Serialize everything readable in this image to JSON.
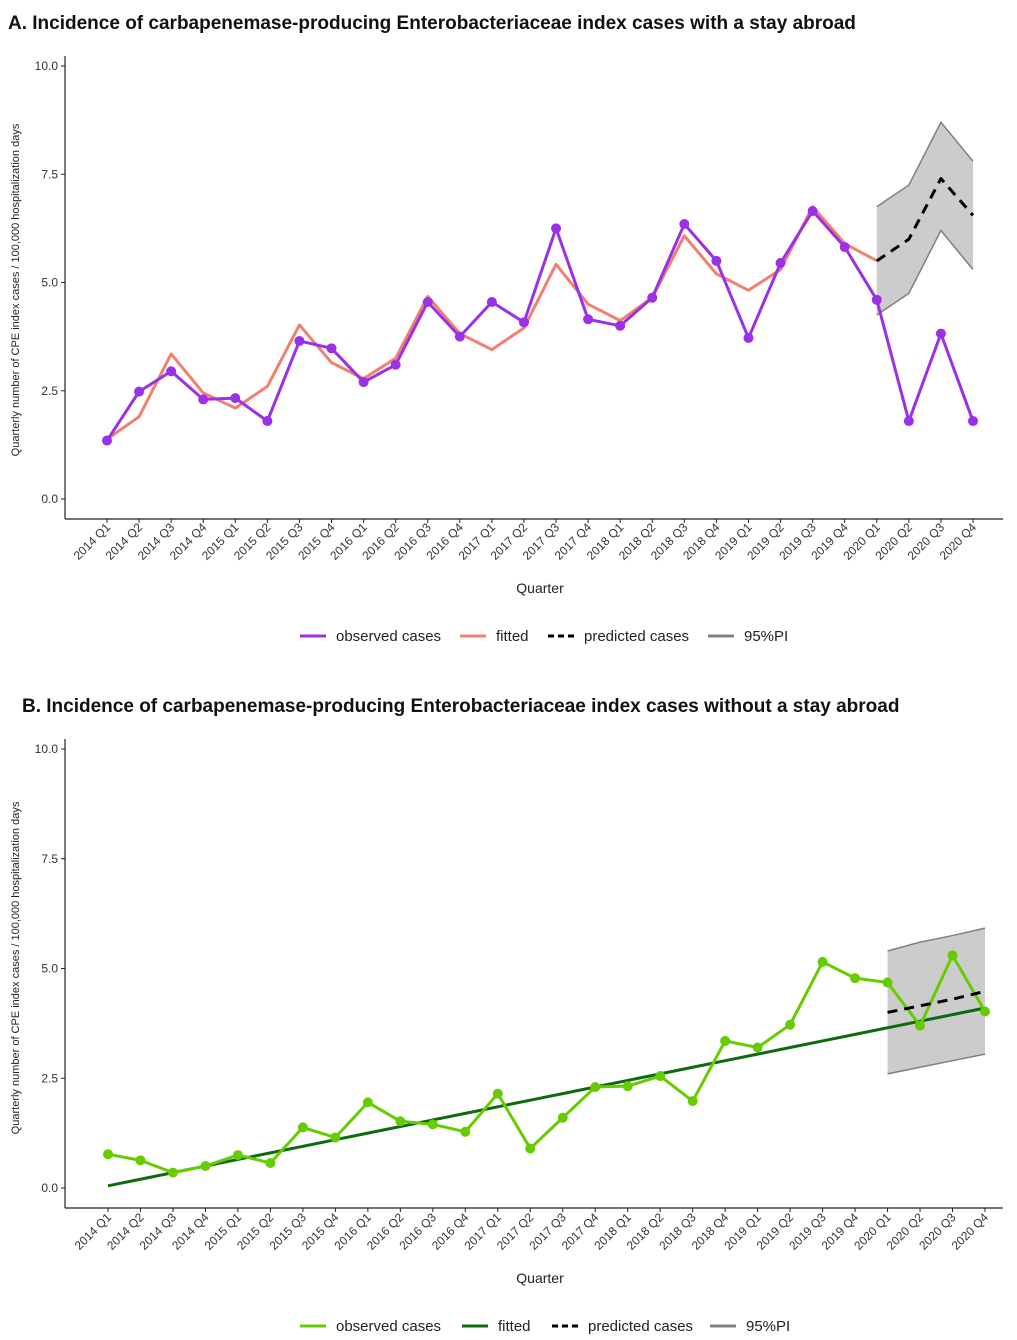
{
  "chart_data": [
    {
      "type": "line",
      "title": "A. Incidence of carbapenemase-producing Enterobacteriaceae index cases with a stay abroad",
      "xlabel": "Quarter",
      "ylabel": "Quarterly number of CPE index cases / 100,000 hospitalization days",
      "ylim": [
        0,
        10
      ],
      "yticks": [
        "0.0",
        "2.5",
        "5.0",
        "7.5",
        "10.0"
      ],
      "categories": [
        "2014 Q1",
        "2014 Q2",
        "2014 Q3",
        "2014 Q4",
        "2015 Q1",
        "2015 Q2",
        "2015 Q3",
        "2015 Q4",
        "2016 Q1",
        "2016 Q2",
        "2016 Q3",
        "2016 Q4",
        "2017 Q1",
        "2017 Q2",
        "2017 Q3",
        "2017 Q4",
        "2018 Q1",
        "2018 Q2",
        "2018 Q3",
        "2018 Q4",
        "2019 Q1",
        "2019 Q2",
        "2019 Q3",
        "2019 Q4",
        "2020 Q1",
        "2020 Q2",
        "2020 Q3",
        "2020 Q4"
      ],
      "series": [
        {
          "name": "observed cases",
          "color": "#9b30e6",
          "markers": true,
          "values": [
            1.35,
            2.48,
            2.95,
            2.3,
            2.33,
            1.8,
            3.65,
            3.48,
            2.7,
            3.1,
            4.55,
            3.75,
            4.55,
            4.08,
            6.25,
            4.15,
            4.0,
            4.65,
            6.35,
            5.5,
            3.72,
            5.45,
            6.65,
            5.82,
            4.6,
            1.8,
            3.82,
            1.8
          ]
        },
        {
          "name": "fitted",
          "color": "#f08070",
          "markers": false,
          "values": [
            1.38,
            1.9,
            3.35,
            2.45,
            2.1,
            2.6,
            4.02,
            3.15,
            2.78,
            3.25,
            4.68,
            3.82,
            3.45,
            3.95,
            5.42,
            4.5,
            4.12,
            4.65,
            6.08,
            5.2,
            4.82,
            5.3,
            6.75,
            5.9,
            5.5,
            null,
            null,
            null
          ]
        },
        {
          "name": "predicted cases",
          "color": "#000000",
          "dashed": true,
          "values": [
            null,
            null,
            null,
            null,
            null,
            null,
            null,
            null,
            null,
            null,
            null,
            null,
            null,
            null,
            null,
            null,
            null,
            null,
            null,
            null,
            null,
            null,
            null,
            null,
            5.5,
            6.0,
            7.4,
            6.55
          ]
        }
      ],
      "interval": {
        "name": "95%PI",
        "color": "#808080",
        "start_index": 24,
        "lower": [
          4.25,
          4.75,
          6.2,
          5.3
        ],
        "upper": [
          6.75,
          7.25,
          8.7,
          7.8
        ]
      },
      "legend": [
        {
          "label": "observed cases",
          "color": "#9b30e6",
          "style": "solid"
        },
        {
          "label": "fitted",
          "color": "#f08070",
          "style": "solid"
        },
        {
          "label": "predicted cases",
          "color": "#000000",
          "style": "dashed"
        },
        {
          "label": "95%PI",
          "color": "#808080",
          "style": "solid"
        }
      ],
      "legend_position": "bottom"
    },
    {
      "type": "line",
      "title": "B. Incidence of carbapenemase-producing Enterobacteriaceae index cases without a stay abroad",
      "xlabel": "Quarter",
      "ylabel": "Quarterly number of CPE index cases / 100,000 hospitalization days",
      "ylim": [
        0,
        10
      ],
      "yticks": [
        "0.0",
        "2.5",
        "5.0",
        "7.5",
        "10.0"
      ],
      "categories": [
        "2014 Q1",
        "2014 Q2",
        "2014 Q3",
        "2014 Q4",
        "2015 Q1",
        "2015 Q2",
        "2015 Q3",
        "2015 Q4",
        "2016 Q1",
        "2016 Q2",
        "2016 Q3",
        "2016 Q4",
        "2017 Q1",
        "2017 Q2",
        "2017 Q3",
        "2017 Q4",
        "2018 Q1",
        "2018 Q2",
        "2018 Q3",
        "2018 Q4",
        "2019 Q1",
        "2019 Q2",
        "2019 Q3",
        "2019 Q4",
        "2020 Q1",
        "2020 Q2",
        "2020 Q3",
        "2020 Q4"
      ],
      "series": [
        {
          "name": "observed cases",
          "color": "#66cc00",
          "markers": true,
          "values": [
            0.77,
            0.63,
            0.35,
            0.5,
            0.75,
            0.57,
            1.38,
            1.15,
            1.95,
            1.52,
            1.45,
            1.28,
            2.15,
            0.9,
            1.6,
            2.3,
            2.32,
            2.55,
            1.98,
            3.35,
            3.2,
            3.72,
            5.15,
            4.78,
            4.68,
            3.7,
            5.3,
            4.02
          ]
        },
        {
          "name": "fitted",
          "color": "#0d6b0d",
          "markers": false,
          "values": [
            0.05,
            0.2,
            0.35,
            0.5,
            0.65,
            0.8,
            0.95,
            1.1,
            1.25,
            1.4,
            1.55,
            1.7,
            1.85,
            2.0,
            2.15,
            2.3,
            2.45,
            2.6,
            2.75,
            2.9,
            3.05,
            3.2,
            3.35,
            3.5,
            3.65,
            3.8,
            3.95,
            4.1
          ]
        },
        {
          "name": "predicted cases",
          "color": "#000000",
          "dashed": true,
          "values": [
            null,
            null,
            null,
            null,
            null,
            null,
            null,
            null,
            null,
            null,
            null,
            null,
            null,
            null,
            null,
            null,
            null,
            null,
            null,
            null,
            null,
            null,
            null,
            null,
            4.0,
            4.15,
            4.3,
            4.48
          ]
        }
      ],
      "interval": {
        "name": "95%PI",
        "color": "#808080",
        "start_index": 24,
        "lower": [
          2.6,
          2.75,
          2.9,
          3.05
        ],
        "upper": [
          5.4,
          5.6,
          5.75,
          5.92
        ]
      },
      "legend": [
        {
          "label": "observed cases",
          "color": "#66cc00",
          "style": "solid"
        },
        {
          "label": "fitted",
          "color": "#0d6b0d",
          "style": "solid"
        },
        {
          "label": "predicted cases",
          "color": "#000000",
          "style": "dashed"
        },
        {
          "label": "95%PI",
          "color": "#808080",
          "style": "solid"
        }
      ],
      "legend_position": "bottom"
    }
  ]
}
